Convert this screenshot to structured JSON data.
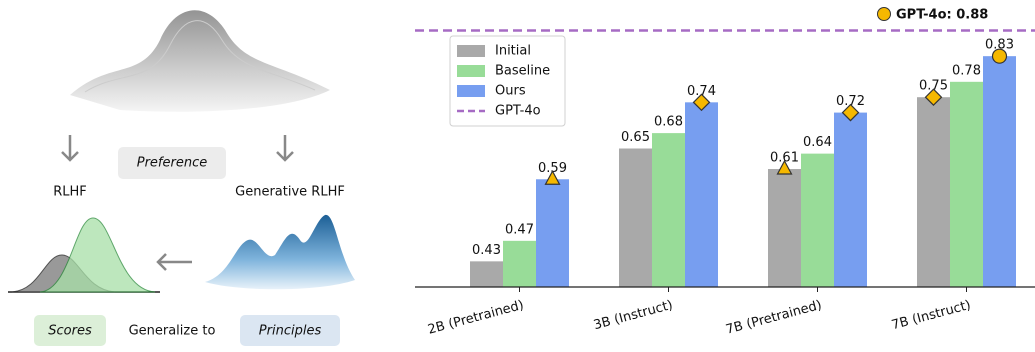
{
  "diagram": {
    "preference": "Preference",
    "rlhf": "RLHF",
    "generative_rlhf": "Generative RLHF",
    "scores": "Scores",
    "generalize": "Generalize to",
    "principles": "Principles"
  },
  "chart_data": {
    "type": "bar",
    "categories": [
      "2B (Pretrained)",
      "3B (Instruct)",
      "7B (Pretrained)",
      "7B (Instruct)"
    ],
    "series": [
      {
        "name": "Initial",
        "color": "#a9a9a9",
        "values": [
          0.43,
          0.65,
          0.61,
          0.75
        ]
      },
      {
        "name": "Baseline",
        "color": "#98dc98",
        "values": [
          0.47,
          0.68,
          0.64,
          0.78
        ]
      },
      {
        "name": "Ours",
        "color": "#779ef0",
        "values": [
          0.59,
          0.74,
          0.72,
          0.83
        ]
      }
    ],
    "markers": [
      {
        "series": 2,
        "index": 0,
        "shape": "triangle"
      },
      {
        "series": 2,
        "index": 1,
        "shape": "diamond"
      },
      {
        "series": 0,
        "index": 2,
        "shape": "triangle"
      },
      {
        "series": 2,
        "index": 2,
        "shape": "diamond"
      },
      {
        "series": 0,
        "index": 3,
        "shape": "diamond"
      },
      {
        "series": 2,
        "index": 3,
        "shape": "circle"
      }
    ],
    "reference_line": {
      "name": "GPT-4o",
      "value": 0.88,
      "label": "GPT-4o: 0.88",
      "color": "#a66bc4"
    },
    "ylim": [
      0.38,
      0.92
    ],
    "legend": "upper left"
  }
}
